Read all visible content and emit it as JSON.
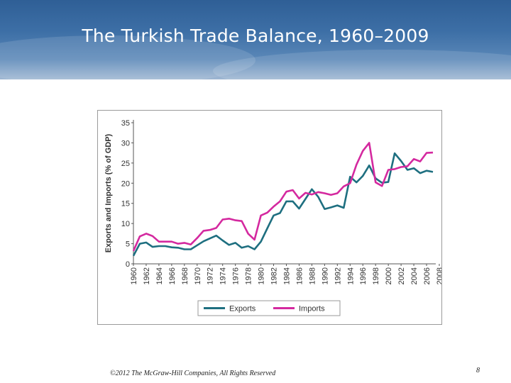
{
  "slide": {
    "title": "The Turkish Trade Balance, 1960–2009",
    "footer": "©2012 The McGraw-Hill Companies, All Rights Reserved",
    "page_number": "8"
  },
  "colors": {
    "banner": "#3d6fa6",
    "exports": "#1e6f80",
    "imports": "#d4299f"
  },
  "chart_data": {
    "type": "line",
    "title": "",
    "xlabel": "",
    "ylabel": "Exports and Imports (% of GDP)",
    "ylim": [
      0,
      35
    ],
    "yticks": [
      0,
      5,
      10,
      15,
      20,
      25,
      30,
      35
    ],
    "xlim": [
      1960,
      2007
    ],
    "xticks": [
      "1960",
      "1962",
      "1964",
      "1966",
      "1968",
      "1970",
      "1972",
      "1974",
      "1976",
      "1978",
      "1980",
      "1982",
      "1984",
      "1986",
      "1988",
      "1990",
      "1992",
      "1994",
      "1996",
      "1998",
      "2000",
      "2002",
      "2004",
      "2006",
      "2008"
    ],
    "grid": false,
    "legend": "bottom",
    "x": [
      1960,
      1961,
      1962,
      1963,
      1964,
      1965,
      1966,
      1967,
      1968,
      1969,
      1970,
      1971,
      1972,
      1973,
      1974,
      1975,
      1976,
      1977,
      1978,
      1979,
      1980,
      1981,
      1982,
      1983,
      1984,
      1985,
      1986,
      1987,
      1988,
      1989,
      1990,
      1991,
      1992,
      1993,
      1994,
      1995,
      1996,
      1997,
      1998,
      1999,
      2000,
      2001,
      2002,
      2003,
      2004,
      2005,
      2006,
      2007
    ],
    "series": [
      {
        "name": "Exports",
        "color": "#1e6f80",
        "values": [
          2.0,
          5.0,
          5.3,
          4.2,
          4.4,
          4.4,
          4.1,
          4.0,
          3.6,
          3.6,
          4.6,
          5.6,
          6.3,
          7.0,
          5.8,
          4.7,
          5.2,
          4.0,
          4.4,
          3.6,
          5.5,
          8.8,
          12.0,
          12.6,
          15.5,
          15.5,
          13.7,
          16.1,
          18.5,
          16.6,
          13.6,
          14.0,
          14.5,
          13.9,
          21.6,
          20.2,
          21.8,
          24.4,
          21.2,
          20.1,
          20.3,
          27.4,
          25.5,
          23.3,
          23.7,
          22.5,
          23.1,
          22.8
        ]
      },
      {
        "name": "Imports",
        "color": "#d4299f",
        "values": [
          3.2,
          6.8,
          7.5,
          6.9,
          5.5,
          5.5,
          5.5,
          5.0,
          5.2,
          4.8,
          6.4,
          8.2,
          8.4,
          8.9,
          11.0,
          11.2,
          10.8,
          10.6,
          7.5,
          6.0,
          12.0,
          12.7,
          14.2,
          15.5,
          17.9,
          18.3,
          16.2,
          17.6,
          17.2,
          17.8,
          17.5,
          17.1,
          17.5,
          19.2,
          20.0,
          24.6,
          28.0,
          30.0,
          20.2,
          19.3,
          23.3,
          23.5,
          24.0,
          24.2,
          26.0,
          25.4,
          27.5,
          27.6
        ]
      }
    ]
  }
}
